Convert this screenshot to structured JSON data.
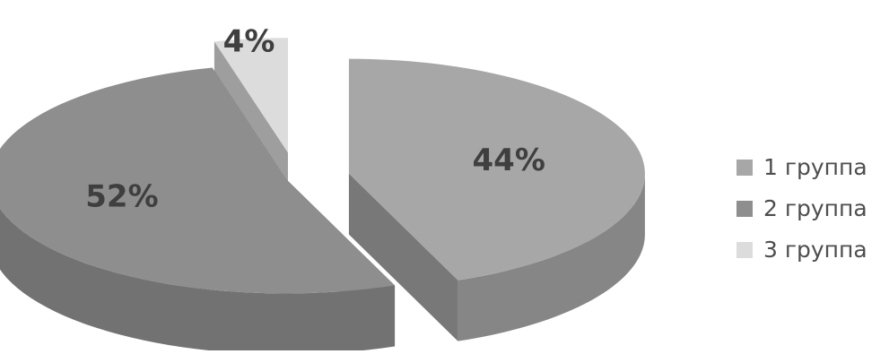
{
  "chart_data": {
    "type": "pie",
    "style": "3d-exploded",
    "categories": [
      "1 группа",
      "2 группа",
      "3 группа"
    ],
    "values": [
      44,
      52,
      4
    ],
    "value_labels": [
      "44%",
      "52%",
      "4%"
    ],
    "colors": [
      "#a7a7a7",
      "#8e8e8e",
      "#dcdcdc"
    ],
    "legend": {
      "position": "right",
      "items": [
        {
          "label": "1 группа",
          "color": "#a7a7a7"
        },
        {
          "label": "2 группа",
          "color": "#8e8e8e"
        },
        {
          "label": "3 группа",
          "color": "#dcdcdc"
        }
      ]
    }
  }
}
